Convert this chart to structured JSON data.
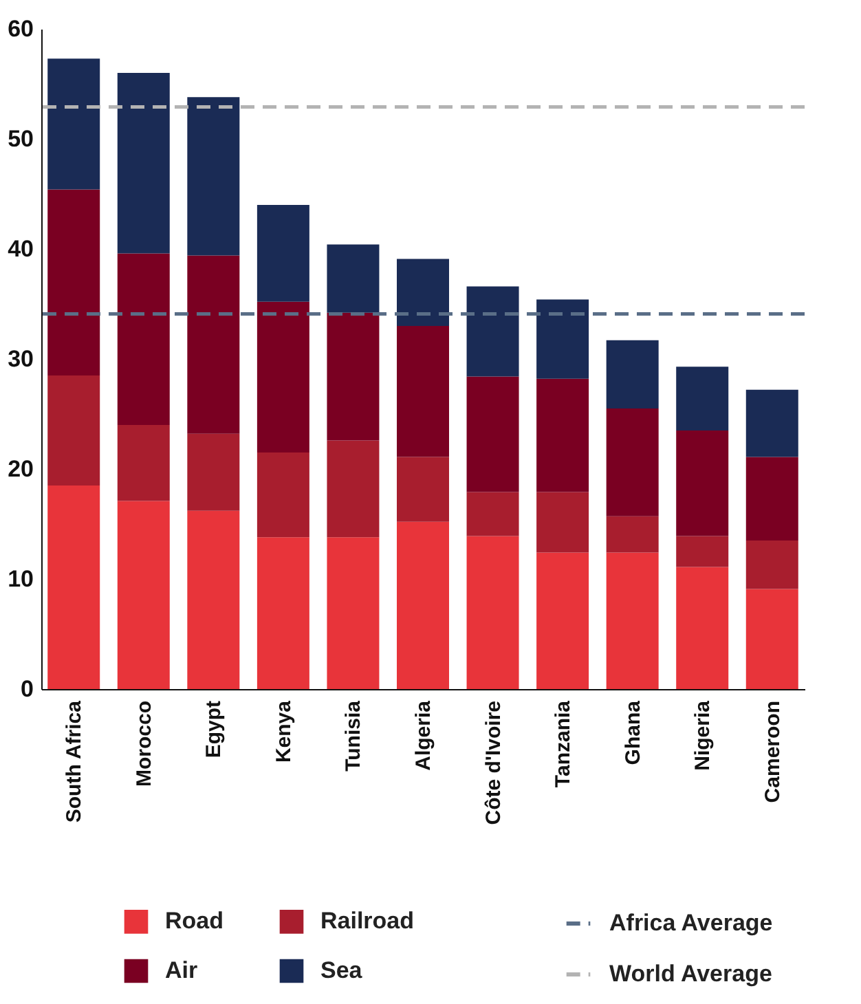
{
  "chart_data": {
    "type": "bar",
    "stacked": true,
    "categories": [
      "South Africa",
      "Morocco",
      "Egypt",
      "Kenya",
      "Tunisia",
      "Algeria",
      "Côte d'Ivoire",
      "Tanzania",
      "Ghana",
      "Nigeria",
      "Cameroon"
    ],
    "series": [
      {
        "name": "Road",
        "color": "#e8343a",
        "values": [
          18.5,
          17.1,
          16.2,
          13.8,
          13.8,
          15.2,
          13.9,
          12.4,
          12.4,
          11.1,
          9.1
        ]
      },
      {
        "name": "Railroad",
        "color": "#a81e2e",
        "values": [
          10.0,
          6.9,
          7.0,
          7.7,
          8.8,
          5.9,
          4.0,
          5.5,
          3.3,
          2.8,
          4.4
        ]
      },
      {
        "name": "Air",
        "color": "#7a0022",
        "values": [
          16.9,
          15.6,
          16.2,
          13.7,
          11.6,
          11.9,
          10.5,
          10.3,
          9.8,
          9.6,
          7.6
        ]
      },
      {
        "name": "Sea",
        "color": "#1a2b55",
        "values": [
          11.9,
          16.4,
          14.4,
          8.8,
          6.2,
          6.1,
          8.2,
          7.2,
          6.2,
          5.8,
          6.1
        ]
      }
    ],
    "ref_lines": [
      {
        "axis": "y",
        "value": 34.1,
        "label": "Africa Average",
        "color": "#5a6e87",
        "line_style": "dashed"
      },
      {
        "axis": "y",
        "value": 52.9,
        "label": "World Average",
        "color": "#b3b3b3",
        "line_style": "dashed"
      }
    ],
    "ylim": [
      0,
      60
    ],
    "yticks": [
      0,
      10,
      20,
      30,
      40,
      50,
      60
    ],
    "grid": false,
    "legend": "bottom"
  }
}
